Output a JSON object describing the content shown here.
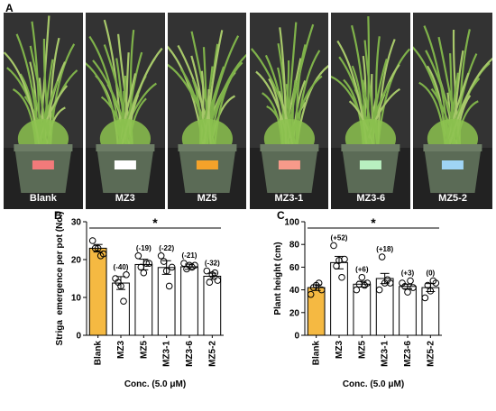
{
  "panels": {
    "a": "A",
    "b": "B",
    "c": "C"
  },
  "photos": [
    {
      "label": "Blank"
    },
    {
      "label": "MZ3"
    },
    {
      "label": "MZ5"
    },
    {
      "label": "MZ3-1"
    },
    {
      "label": "MZ3-6"
    },
    {
      "label": "MZ5-2"
    }
  ],
  "colors": {
    "blank_bar": "#F5B942",
    "other_bars": "#FFFFFF",
    "pot": "#5b6b56",
    "foliage": "#7fb24a",
    "photo_bg": "#2b2b2b",
    "tag_colors": [
      "#f27a7a",
      "#ffffff",
      "#f4a22a",
      "#f79a8a",
      "#b8f0c0",
      "#9fd4f5"
    ]
  },
  "chart_data": [
    {
      "type": "bar",
      "panel": "B",
      "title": "",
      "xlabel": "Conc. (5.0 μM)",
      "ylabel": "Striga  emergence per pot (No.)",
      "ylim": [
        0,
        30
      ],
      "yticks": [
        0,
        10,
        20,
        30
      ],
      "categories": [
        "Blank",
        "MZ3",
        "MZ5",
        "MZ3-1",
        "MZ3-6",
        "MZ5-2"
      ],
      "values": [
        23,
        13.8,
        18.7,
        17.9,
        18.1,
        15.6
      ],
      "errors": [
        1.0,
        1.7,
        1.4,
        1.8,
        0.7,
        0.8
      ],
      "annotations": [
        "",
        "(-40)",
        "(-19)",
        "(-22)",
        "(-21)",
        "(-32)"
      ],
      "points": [
        [
          25.0,
          23.0,
          23.0,
          21.0,
          21.5
        ],
        [
          15.0,
          14.0,
          13.0,
          9.0,
          16.0
        ],
        [
          21.0,
          18.0,
          16.5,
          19.0,
          19.0
        ],
        [
          21.0,
          19.5,
          17.0,
          13.0,
          18.0
        ],
        [
          19.0,
          17.5,
          18.5,
          18.0,
          18.5
        ],
        [
          17.0,
          14.0,
          16.0,
          16.5,
          14.5
        ]
      ],
      "significance": "*",
      "grid": false,
      "legend": "none"
    },
    {
      "type": "bar",
      "panel": "C",
      "title": "",
      "xlabel": "Conc. (5.0 μM)",
      "ylabel": "Plant height (cm)",
      "ylim": [
        0,
        100
      ],
      "yticks": [
        0,
        20,
        40,
        60,
        80,
        100
      ],
      "categories": [
        "Blank",
        "MZ3",
        "MZ5",
        "MZ3-1",
        "MZ3-6",
        "MZ5-2"
      ],
      "values": [
        42,
        64,
        45,
        50,
        43,
        42
      ],
      "errors": [
        2.5,
        5.5,
        2.5,
        4.5,
        2.0,
        3.5
      ],
      "annotations": [
        "",
        "(+52)",
        "(+6)",
        "(+18)",
        "(+3)",
        "(0)"
      ],
      "points": [
        [
          36.0,
          42.0,
          44.0,
          46.0,
          40.0
        ],
        [
          79.0,
          61.0,
          66.0,
          51.0,
          67.0
        ],
        [
          40.0,
          45.0,
          51.0,
          44.0,
          46.0
        ],
        [
          40.0,
          69.0,
          46.0,
          49.0,
          46.0
        ],
        [
          46.0,
          43.0,
          38.0,
          48.0,
          42.0
        ],
        [
          33.0,
          44.0,
          39.0,
          48.0,
          46.0
        ]
      ],
      "significance": "*",
      "grid": false,
      "legend": "none"
    }
  ]
}
